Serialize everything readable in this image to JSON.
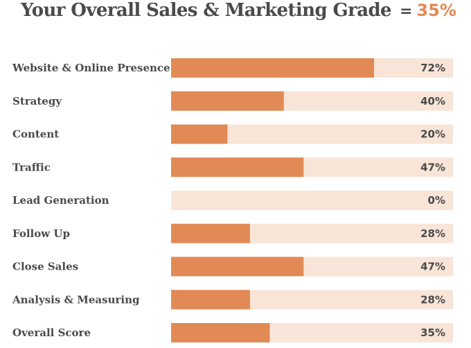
{
  "header": {
    "title": "Your Overall Sales & Marketing Grade",
    "equals": "=",
    "grade": "35%"
  },
  "colors": {
    "bar_fill": "#e28a55",
    "bar_track": "#f8e5d8",
    "text": "#4a4a4a",
    "accent": "#e28a55"
  },
  "chart_data": {
    "type": "bar",
    "orientation": "horizontal",
    "title": "Your Overall Sales & Marketing Grade",
    "categories": [
      "Website & Online Presence",
      "Strategy",
      "Content",
      "Traffic",
      "Lead Generation",
      "Follow Up",
      "Close Sales",
      "Analysis & Measuring",
      "Overall Score"
    ],
    "values": [
      72,
      40,
      20,
      47,
      0,
      28,
      47,
      28,
      35
    ],
    "value_labels": [
      "72%",
      "40%",
      "20%",
      "47%",
      "0%",
      "28%",
      "47%",
      "28%",
      "35%"
    ],
    "xlim": [
      0,
      100
    ],
    "grid": false,
    "legend": "none"
  }
}
